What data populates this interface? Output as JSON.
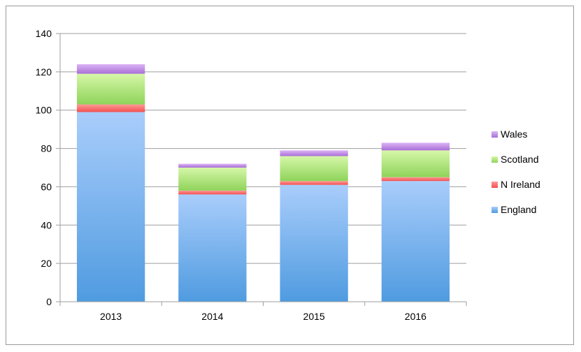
{
  "chart_data": {
    "type": "bar",
    "stacked": true,
    "categories": [
      "2013",
      "2014",
      "2015",
      "2016"
    ],
    "series": [
      {
        "name": "England",
        "values": [
          99,
          56,
          61,
          63
        ],
        "color": "#4f9be0",
        "color_light": "#a9cdfb"
      },
      {
        "name": "N Ireland",
        "values": [
          4,
          2,
          2,
          2
        ],
        "color": "#f0504f",
        "color_light": "#ff9a98"
      },
      {
        "name": "Scotland",
        "values": [
          16,
          12,
          13,
          14
        ],
        "color": "#8fd35a",
        "color_light": "#d6f7a8"
      },
      {
        "name": "Wales",
        "values": [
          5,
          2,
          3,
          4
        ],
        "color": "#a86fd6",
        "color_light": "#dcb4f5"
      }
    ],
    "ylim": [
      0,
      140
    ],
    "yticks": [
      0,
      20,
      40,
      60,
      80,
      100,
      120,
      140
    ],
    "grid": true,
    "legend": "right",
    "legend_order": [
      "Wales",
      "Scotland",
      "N Ireland",
      "England"
    ]
  }
}
